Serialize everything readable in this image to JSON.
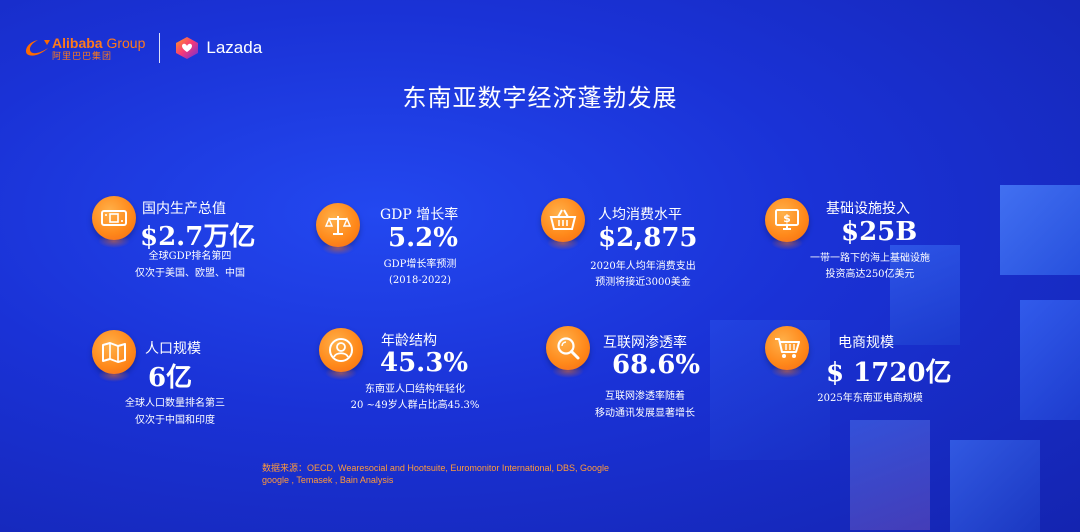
{
  "header": {
    "alibaba_name": "Alibaba",
    "alibaba_group": "Group",
    "alibaba_cn": "阿里巴巴集团",
    "lazada_name": "Lazada"
  },
  "page": {
    "title": "东南亚数字经济蓬勃发展"
  },
  "stats": [
    {
      "icon": "money-bill-icon",
      "label": "国内生产总值",
      "value": "$2.7万亿",
      "desc1": "全球GDP排名第四",
      "desc2": "仅次于美国、欧盟、中国"
    },
    {
      "icon": "scales-icon",
      "label": "GDP 增长率",
      "value": "5.2%",
      "desc1": "GDP增长率预测",
      "desc2": "(2018-2022)"
    },
    {
      "icon": "shopping-basket-icon",
      "label": "人均消费水平",
      "value": "$2,875",
      "desc1": "2020年人均年消费支出",
      "desc2": "预测将接近3000美金"
    },
    {
      "icon": "monitor-dollar-icon",
      "label": "基础设施投入",
      "value": "$25B",
      "desc1": "一带一路下的海上基础设施",
      "desc2": "投资高达250亿美元"
    },
    {
      "icon": "map-icon",
      "label": "人口规模",
      "value": "6亿",
      "desc1": "全球人口数量排名第三",
      "desc2": "仅次于中国和印度"
    },
    {
      "icon": "person-icon",
      "label": "年龄结构",
      "value": "45.3%",
      "desc1": "东南亚人口结构年轻化",
      "desc2": "20 ~49岁人群占比高45.3%"
    },
    {
      "icon": "magnifier-icon",
      "label": "互联网渗透率",
      "value": "68.6%",
      "desc1": "互联网渗透率随着",
      "desc2": "移动通讯发展显著增长"
    },
    {
      "icon": "shopping-cart-icon",
      "label": "电商规模",
      "value": "$ 1720亿",
      "desc1": "2025年东南亚电商规模",
      "desc2": ""
    }
  ],
  "footer": {
    "source_line1": "数据来源：OECD, Wearesocial and Hootsuite, Euromonitor International, DBS, Google",
    "source_line2": "google , Temasek , Bain Analysis"
  },
  "colors": {
    "background": "#1a32d6",
    "accent_orange": "#ff8a1c",
    "text": "#ffffff"
  }
}
